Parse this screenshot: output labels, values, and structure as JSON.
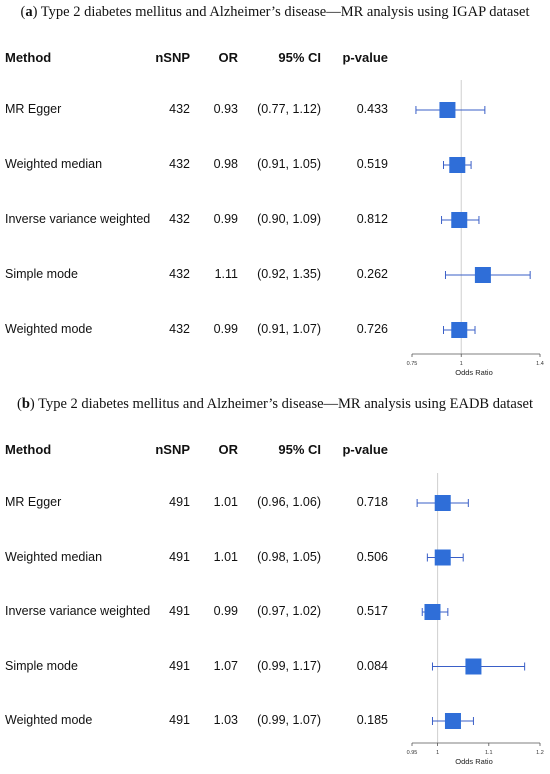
{
  "chart_data": [
    {
      "type": "forest",
      "panel_label": "a",
      "title_text": "Type 2 diabetes mellitus and Alzheimer’s disease—MR analysis using IGAP dataset",
      "columns": [
        "Method",
        "nSNP",
        "OR",
        "95% CI",
        "p-value"
      ],
      "rows": [
        {
          "method": "MR Egger",
          "nsnp": "432",
          "or_text": "0.93",
          "ci_text": "(0.77, 1.12)",
          "p_text": "0.433",
          "or": 0.93,
          "lo": 0.77,
          "hi": 1.12
        },
        {
          "method": "Weighted median",
          "nsnp": "432",
          "or_text": "0.98",
          "ci_text": "(0.91, 1.05)",
          "p_text": "0.519",
          "or": 0.98,
          "lo": 0.91,
          "hi": 1.05
        },
        {
          "method": "Inverse variance weighted",
          "nsnp": "432",
          "or_text": "0.99",
          "ci_text": "(0.90, 1.09)",
          "p_text": "0.812",
          "or": 0.99,
          "lo": 0.9,
          "hi": 1.09
        },
        {
          "method": "Simple mode",
          "nsnp": "432",
          "or_text": "1.11",
          "ci_text": "(0.92, 1.35)",
          "p_text": "0.262",
          "or": 1.11,
          "lo": 0.92,
          "hi": 1.35
        },
        {
          "method": "Weighted mode",
          "nsnp": "432",
          "or_text": "0.99",
          "ci_text": "(0.91, 1.07)",
          "p_text": "0.726",
          "or": 0.99,
          "lo": 0.91,
          "hi": 1.07
        }
      ],
      "xlabel": "Odds Ratio",
      "xticks": [
        "0.75",
        "1",
        "1.4"
      ],
      "xtick_values": [
        0.75,
        1,
        1.4
      ],
      "xlim": [
        0.75,
        1.4
      ],
      "reference_line": 1,
      "marker_color": "#2f6ed8",
      "line_color": "#3a5fc7"
    },
    {
      "type": "forest",
      "panel_label": "b",
      "title_text": "Type 2 diabetes mellitus and Alzheimer’s disease—MR analysis using EADB dataset",
      "columns": [
        "Method",
        "nSNP",
        "OR",
        "95% CI",
        "p-value"
      ],
      "rows": [
        {
          "method": "MR Egger",
          "nsnp": "491",
          "or_text": "1.01",
          "ci_text": "(0.96, 1.06)",
          "p_text": "0.718",
          "or": 1.01,
          "lo": 0.96,
          "hi": 1.06
        },
        {
          "method": "Weighted median",
          "nsnp": "491",
          "or_text": "1.01",
          "ci_text": "(0.98, 1.05)",
          "p_text": "0.506",
          "or": 1.01,
          "lo": 0.98,
          "hi": 1.05
        },
        {
          "method": "Inverse variance weighted",
          "nsnp": "491",
          "or_text": "0.99",
          "ci_text": "(0.97, 1.02)",
          "p_text": "0.517",
          "or": 0.99,
          "lo": 0.97,
          "hi": 1.02
        },
        {
          "method": "Simple mode",
          "nsnp": "491",
          "or_text": "1.07",
          "ci_text": "(0.99, 1.17)",
          "p_text": "0.084",
          "or": 1.07,
          "lo": 0.99,
          "hi": 1.17
        },
        {
          "method": "Weighted mode",
          "nsnp": "491",
          "or_text": "1.03",
          "ci_text": "(0.99, 1.07)",
          "p_text": "0.185",
          "or": 1.03,
          "lo": 0.99,
          "hi": 1.07
        }
      ],
      "xlabel": "Odds Ratio",
      "xticks": [
        "0.95",
        "1",
        "1.1",
        "1.2"
      ],
      "xtick_values": [
        0.95,
        1,
        1.1,
        1.2
      ],
      "xlim": [
        0.95,
        1.2
      ],
      "reference_line": 1,
      "marker_color": "#2f6ed8",
      "line_color": "#3a5fc7"
    }
  ]
}
